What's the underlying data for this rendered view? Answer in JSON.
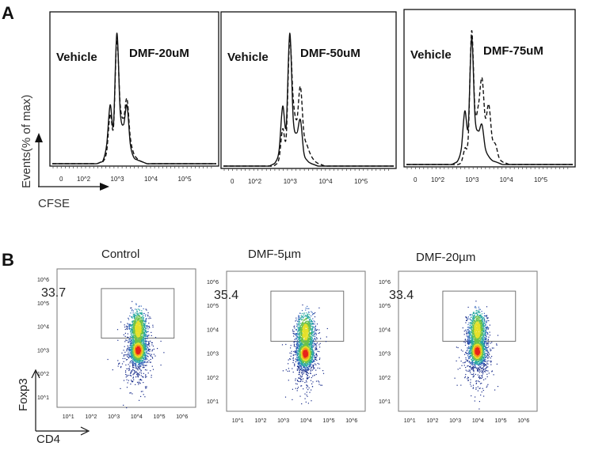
{
  "chart_data": [
    {
      "type": "line",
      "panel_label": "A",
      "ylabel": "Events(% of max)",
      "xlabel": "CFSE",
      "x_ticks": [
        "0",
        "10^2",
        "10^3",
        "10^4",
        "10^5"
      ],
      "x_log10": [
        2.0,
        2.1,
        2.2,
        2.3,
        2.4,
        2.5,
        2.6,
        2.7,
        2.8,
        2.9,
        3.0,
        3.1,
        3.2,
        3.3,
        3.4,
        3.5,
        3.6,
        3.7,
        3.8,
        3.9,
        4.0,
        4.1,
        4.2,
        4.3,
        4.4,
        4.5,
        4.6
      ],
      "ylim": [
        0,
        100
      ],
      "panels": [
        {
          "labels": [
            "Vehicle",
            "DMF-20uM"
          ],
          "series": [
            {
              "name": "Vehicle",
              "style": "solid",
              "values": [
                0,
                0,
                0,
                0,
                0,
                1,
                3,
                15,
                45,
                30,
                100,
                40,
                30,
                45,
                15,
                5,
                3,
                2,
                1,
                0,
                0,
                0,
                0,
                0,
                0,
                0,
                0
              ]
            },
            {
              "name": "DMF-20uM",
              "style": "dashed",
              "values": [
                0,
                0,
                0,
                0,
                0,
                1,
                2,
                10,
                38,
                28,
                95,
                45,
                35,
                50,
                20,
                8,
                4,
                2,
                1,
                0,
                0,
                0,
                0,
                0,
                0,
                0,
                0
              ]
            }
          ]
        },
        {
          "labels": [
            "Vehicle",
            "DMF-50uM"
          ],
          "series": [
            {
              "name": "Vehicle",
              "style": "solid",
              "values": [
                0,
                0,
                0,
                0,
                0,
                1,
                3,
                12,
                45,
                30,
                100,
                35,
                25,
                35,
                10,
                4,
                2,
                1,
                0,
                0,
                0,
                0,
                0,
                0,
                0,
                0,
                0
              ]
            },
            {
              "name": "DMF-50uM",
              "style": "dashed",
              "values": [
                0,
                0,
                0,
                0,
                0,
                0,
                1,
                6,
                28,
                22,
                95,
                50,
                35,
                60,
                25,
                15,
                8,
                4,
                2,
                1,
                0,
                0,
                0,
                0,
                0,
                0,
                0
              ]
            }
          ]
        },
        {
          "labels": [
            "Vehicle",
            "DMF-75uM"
          ],
          "series": [
            {
              "name": "Vehicle",
              "style": "solid",
              "values": [
                0,
                0,
                0,
                0,
                0,
                1,
                3,
                12,
                40,
                28,
                95,
                35,
                25,
                30,
                12,
                6,
                3,
                2,
                1,
                0,
                0,
                0,
                0,
                0,
                0,
                0,
                0
              ]
            },
            {
              "name": "DMF-75uM",
              "style": "dashed",
              "values": [
                0,
                0,
                0,
                0,
                0,
                0,
                0,
                2,
                12,
                20,
                100,
                40,
                45,
                65,
                35,
                45,
                20,
                15,
                5,
                2,
                1,
                0,
                0,
                0,
                0,
                0,
                0
              ]
            }
          ]
        }
      ]
    },
    {
      "type": "scatter",
      "panel_label": "B",
      "xlabel": "CD4",
      "ylabel": "Foxp3",
      "x_ticks": [
        "10^1",
        "10^2",
        "10^3",
        "10^4",
        "10^5",
        "10^6"
      ],
      "y_ticks": [
        "10^1",
        "10^2",
        "10^3",
        "10^4",
        "10^5",
        "10^6"
      ],
      "panels": [
        {
          "title": "Control",
          "gate_percent": "33.7",
          "cluster_center_log": [
            4.0,
            3.0
          ]
        },
        {
          "title": "DMF-5µm",
          "gate_percent": "35.4",
          "cluster_center_log": [
            3.9,
            3.0
          ]
        },
        {
          "title": "DMF-20µm",
          "gate_percent": "33.4",
          "cluster_center_log": [
            3.9,
            3.1
          ]
        }
      ],
      "gate_log": {
        "x": [
          2.4,
          5.6
        ],
        "y": [
          3.5,
          5.6
        ]
      }
    }
  ]
}
